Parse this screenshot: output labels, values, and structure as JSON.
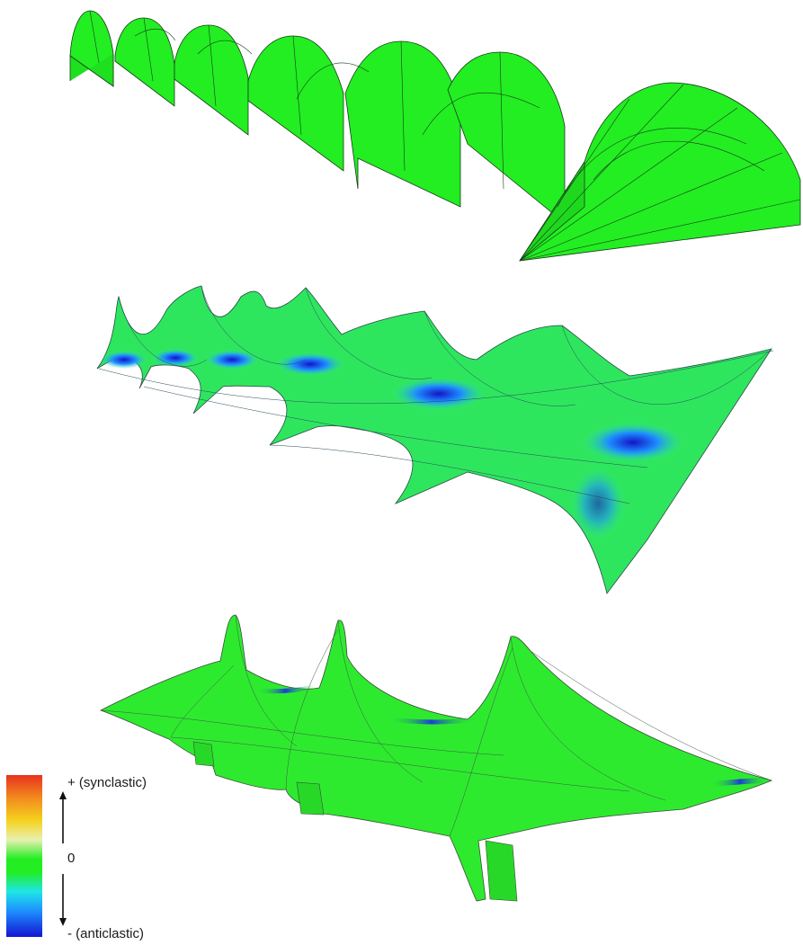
{
  "legend": {
    "top_label": "+ (synclastic)",
    "mid_label": "0",
    "bottom_label": "- (anticlastic)",
    "colors": {
      "synclastic": "#e8321e",
      "zero": "#22ee22",
      "anticlastic": "#1414d2"
    }
  },
  "shapes": [
    {
      "name": "barrel-vault-series",
      "color": "#22ee22"
    },
    {
      "name": "saddle-wave-series",
      "color": "#22ee22"
    },
    {
      "name": "tent-peak-series",
      "color": "#22ee22"
    }
  ]
}
